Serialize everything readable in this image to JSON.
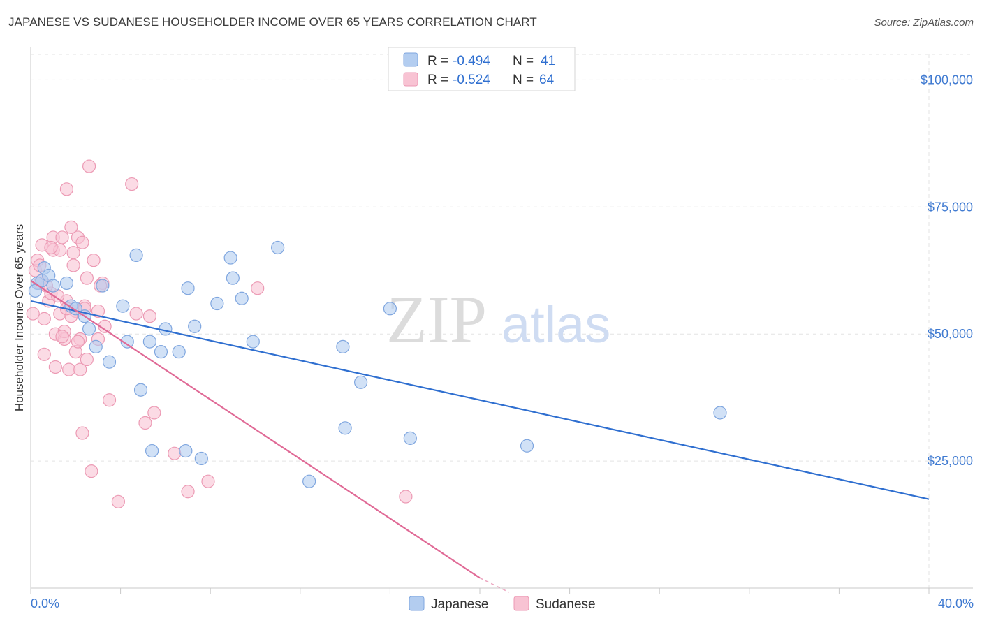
{
  "header": {
    "title": "JAPANESE VS SUDANESE HOUSEHOLDER INCOME OVER 65 YEARS CORRELATION CHART",
    "source": "Source: ZipAtlas.com"
  },
  "watermark": {
    "part1": "ZIP",
    "part2": "atlas"
  },
  "legend": {
    "rows": [
      {
        "r_label": "R = ",
        "r_value": "-0.494",
        "n_label": "N = ",
        "n_value": "41",
        "color": "#a9c4ec"
      },
      {
        "r_label": "R = ",
        "r_value": "-0.524",
        "n_label": "N = ",
        "n_value": "64",
        "color": "#f4b4c8"
      }
    ]
  },
  "colors": {
    "japanese_fill": "#b3cdf0",
    "japanese_stroke": "#7fa6df",
    "japanese_line": "#2f6fd0",
    "sudanese_fill": "#f8c3d3",
    "sudanese_stroke": "#ec9ab4",
    "sudanese_line": "#e06a96",
    "grid": "#e3e3e3",
    "tick_label": "#3f7ad1"
  },
  "chart_data": {
    "type": "scatter",
    "title": "JAPANESE VS SUDANESE HOUSEHOLDER INCOME OVER 65 YEARS CORRELATION CHART",
    "xlabel": "",
    "ylabel": "Householder Income Over 65 years",
    "xlim": [
      0,
      40
    ],
    "ylim": [
      0,
      105000
    ],
    "x_tick_labels": [
      "0.0%",
      "40.0%"
    ],
    "y_ticks": [
      25000,
      50000,
      75000,
      100000
    ],
    "y_tick_labels": [
      "$25,000",
      "$50,000",
      "$75,000",
      "$100,000"
    ],
    "grid": true,
    "legend_placement": "top-center",
    "series": [
      {
        "name": "Japanese",
        "points": [
          [
            0.3,
            60000
          ],
          [
            0.5,
            60500
          ],
          [
            0.6,
            63000
          ],
          [
            0.8,
            61500
          ],
          [
            1.0,
            59500
          ],
          [
            1.6,
            60000
          ],
          [
            1.8,
            55500
          ],
          [
            2.0,
            55000
          ],
          [
            2.4,
            53500
          ],
          [
            2.6,
            51000
          ],
          [
            2.9,
            47500
          ],
          [
            3.2,
            59500
          ],
          [
            3.5,
            44500
          ],
          [
            4.1,
            55500
          ],
          [
            4.3,
            48500
          ],
          [
            4.7,
            65500
          ],
          [
            4.9,
            39000
          ],
          [
            5.3,
            48500
          ],
          [
            5.4,
            27000
          ],
          [
            5.8,
            46500
          ],
          [
            6.0,
            51000
          ],
          [
            6.6,
            46500
          ],
          [
            6.9,
            27000
          ],
          [
            7.0,
            59000
          ],
          [
            7.3,
            51500
          ],
          [
            7.6,
            25500
          ],
          [
            8.3,
            56000
          ],
          [
            8.9,
            65000
          ],
          [
            9.0,
            61000
          ],
          [
            9.4,
            57000
          ],
          [
            9.9,
            48500
          ],
          [
            11.0,
            67000
          ],
          [
            12.4,
            21000
          ],
          [
            13.9,
            47500
          ],
          [
            14.0,
            31500
          ],
          [
            14.7,
            40500
          ],
          [
            16.0,
            55000
          ],
          [
            16.9,
            29500
          ],
          [
            22.1,
            28000
          ],
          [
            30.7,
            34500
          ],
          [
            0.2,
            58500
          ]
        ]
      },
      {
        "name": "Sudanese",
        "points": [
          [
            0.1,
            54000
          ],
          [
            0.2,
            62500
          ],
          [
            0.3,
            64500
          ],
          [
            0.4,
            60000
          ],
          [
            0.5,
            67500
          ],
          [
            0.6,
            53000
          ],
          [
            0.6,
            46000
          ],
          [
            0.8,
            56500
          ],
          [
            0.9,
            58000
          ],
          [
            1.0,
            69000
          ],
          [
            1.0,
            66500
          ],
          [
            1.1,
            43500
          ],
          [
            1.1,
            50000
          ],
          [
            1.3,
            54000
          ],
          [
            1.3,
            66500
          ],
          [
            1.4,
            69000
          ],
          [
            1.5,
            49000
          ],
          [
            1.5,
            50500
          ],
          [
            1.6,
            78500
          ],
          [
            1.6,
            56500
          ],
          [
            1.7,
            43000
          ],
          [
            1.8,
            71000
          ],
          [
            1.9,
            63500
          ],
          [
            1.9,
            66000
          ],
          [
            2.0,
            54500
          ],
          [
            2.0,
            46500
          ],
          [
            2.1,
            69000
          ],
          [
            2.2,
            49000
          ],
          [
            2.2,
            43000
          ],
          [
            2.3,
            68000
          ],
          [
            2.3,
            30500
          ],
          [
            2.4,
            55500
          ],
          [
            2.5,
            61000
          ],
          [
            2.5,
            45000
          ],
          [
            2.6,
            83000
          ],
          [
            2.7,
            23000
          ],
          [
            2.8,
            64500
          ],
          [
            3.0,
            49000
          ],
          [
            3.0,
            54500
          ],
          [
            3.2,
            60000
          ],
          [
            3.3,
            51500
          ],
          [
            3.5,
            37000
          ],
          [
            3.9,
            17000
          ],
          [
            4.5,
            79500
          ],
          [
            4.7,
            54000
          ],
          [
            5.1,
            32500
          ],
          [
            5.3,
            53500
          ],
          [
            5.5,
            34500
          ],
          [
            6.4,
            26500
          ],
          [
            7.0,
            19000
          ],
          [
            7.9,
            21000
          ],
          [
            10.1,
            59000
          ],
          [
            16.7,
            18000
          ],
          [
            0.4,
            63500
          ],
          [
            1.2,
            57500
          ],
          [
            2.1,
            48500
          ],
          [
            0.7,
            59500
          ],
          [
            1.8,
            53500
          ],
          [
            0.9,
            67000
          ],
          [
            1.4,
            49500
          ],
          [
            2.4,
            55000
          ],
          [
            3.1,
            59500
          ],
          [
            0.5,
            60500
          ],
          [
            1.6,
            55000
          ]
        ]
      }
    ],
    "trendlines": [
      {
        "name": "Japanese",
        "x": [
          0,
          40
        ],
        "y": [
          56500,
          17500
        ],
        "dashed_from": null
      },
      {
        "name": "Sudanese",
        "x": [
          0,
          20
        ],
        "y": [
          60500,
          2000
        ],
        "solid_until": 20,
        "dash_x": [
          20,
          21.3
        ],
        "dash_y": [
          2000,
          -2000
        ]
      }
    ]
  },
  "bottom_legend": [
    {
      "label": "Japanese",
      "color": "#b3cdf0"
    },
    {
      "label": "Sudanese",
      "color": "#f8c3d3"
    }
  ]
}
